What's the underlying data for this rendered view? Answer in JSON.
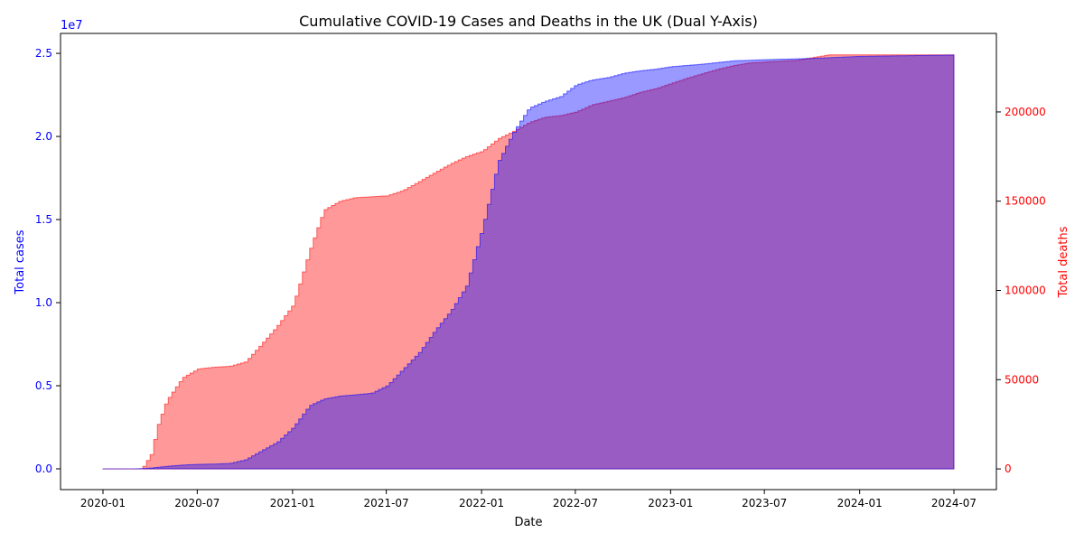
{
  "chart_data": {
    "type": "area",
    "title": "Cumulative COVID-19 Cases and Deaths in the UK (Dual Y-Axis)",
    "xlabel": "Date",
    "x_ticks": [
      "2020-01",
      "2020-07",
      "2021-01",
      "2021-07",
      "2022-01",
      "2022-07",
      "2023-01",
      "2023-07",
      "2024-01",
      "2024-07"
    ],
    "xlim": [
      "2020-01-01",
      "2024-07-01"
    ],
    "left_axis": {
      "label": "Total cases",
      "color": "#0000ff",
      "multiplier_label": "1e7",
      "ticks": [
        "0.0",
        "0.5",
        "1.0",
        "1.5",
        "2.0",
        "2.5"
      ],
      "tick_values": [
        0,
        5000000,
        10000000,
        15000000,
        20000000,
        25000000
      ],
      "ylim": [
        -1250000,
        26200000
      ]
    },
    "right_axis": {
      "label": "Total deaths",
      "color": "#ff0000",
      "ticks": [
        "0",
        "50000",
        "100000",
        "150000",
        "200000"
      ],
      "tick_values": [
        0,
        50000,
        100000,
        150000,
        200000
      ],
      "ylim": [
        -11600,
        244000
      ]
    },
    "series": [
      {
        "name": "Total cases",
        "axis": "left",
        "fill": "#0000ff",
        "points": [
          [
            "2020-01-01",
            0
          ],
          [
            "2020-03-01",
            0
          ],
          [
            "2020-04-01",
            50000
          ],
          [
            "2020-05-01",
            150000
          ],
          [
            "2020-06-01",
            230000
          ],
          [
            "2020-07-01",
            270000
          ],
          [
            "2020-08-01",
            290000
          ],
          [
            "2020-09-01",
            330000
          ],
          [
            "2020-10-01",
            550000
          ],
          [
            "2020-11-01",
            1100000
          ],
          [
            "2020-12-01",
            1600000
          ],
          [
            "2021-01-01",
            2500000
          ],
          [
            "2021-02-01",
            3800000
          ],
          [
            "2021-03-01",
            4200000
          ],
          [
            "2021-04-01",
            4380000
          ],
          [
            "2021-05-01",
            4460000
          ],
          [
            "2021-06-01",
            4550000
          ],
          [
            "2021-07-01",
            5000000
          ],
          [
            "2021-08-01",
            6000000
          ],
          [
            "2021-09-01",
            7000000
          ],
          [
            "2021-10-01",
            8300000
          ],
          [
            "2021-11-01",
            9500000
          ],
          [
            "2021-12-01",
            11000000
          ],
          [
            "2022-01-01",
            14500000
          ],
          [
            "2022-02-01",
            18500000
          ],
          [
            "2022-03-01",
            20200000
          ],
          [
            "2022-04-01",
            21700000
          ],
          [
            "2022-05-01",
            22100000
          ],
          [
            "2022-06-01",
            22400000
          ],
          [
            "2022-07-01",
            23100000
          ],
          [
            "2022-08-01",
            23400000
          ],
          [
            "2022-09-01",
            23550000
          ],
          [
            "2022-10-01",
            23800000
          ],
          [
            "2022-11-01",
            23950000
          ],
          [
            "2022-12-01",
            24050000
          ],
          [
            "2023-01-01",
            24200000
          ],
          [
            "2023-03-01",
            24350000
          ],
          [
            "2023-05-01",
            24550000
          ],
          [
            "2023-07-01",
            24620000
          ],
          [
            "2023-10-01",
            24700000
          ],
          [
            "2024-01-01",
            24820000
          ],
          [
            "2024-07-01",
            24900000
          ]
        ]
      },
      {
        "name": "Total deaths",
        "axis": "right",
        "fill": "#ff0000",
        "points": [
          [
            "2020-01-01",
            0
          ],
          [
            "2020-03-15",
            0
          ],
          [
            "2020-04-01",
            8000
          ],
          [
            "2020-04-15",
            25000
          ],
          [
            "2020-05-01",
            38000
          ],
          [
            "2020-06-01",
            51000
          ],
          [
            "2020-07-01",
            56000
          ],
          [
            "2020-08-01",
            57000
          ],
          [
            "2020-09-01",
            57500
          ],
          [
            "2020-10-01",
            60000
          ],
          [
            "2020-11-01",
            70000
          ],
          [
            "2020-12-01",
            80000
          ],
          [
            "2021-01-01",
            92000
          ],
          [
            "2021-02-01",
            122000
          ],
          [
            "2021-03-01",
            145000
          ],
          [
            "2021-04-01",
            150000
          ],
          [
            "2021-05-01",
            152000
          ],
          [
            "2021-06-01",
            152500
          ],
          [
            "2021-07-01",
            153000
          ],
          [
            "2021-08-01",
            156000
          ],
          [
            "2021-09-01",
            161000
          ],
          [
            "2021-10-01",
            166000
          ],
          [
            "2021-11-01",
            171000
          ],
          [
            "2021-12-01",
            175000
          ],
          [
            "2022-01-01",
            178000
          ],
          [
            "2022-02-01",
            185000
          ],
          [
            "2022-03-01",
            189000
          ],
          [
            "2022-04-01",
            194000
          ],
          [
            "2022-05-01",
            197000
          ],
          [
            "2022-06-01",
            198000
          ],
          [
            "2022-07-01",
            200000
          ],
          [
            "2022-08-01",
            204000
          ],
          [
            "2022-09-01",
            206000
          ],
          [
            "2022-10-01",
            208000
          ],
          [
            "2022-11-01",
            211000
          ],
          [
            "2022-12-01",
            213000
          ],
          [
            "2023-01-01",
            216000
          ],
          [
            "2023-02-01",
            219000
          ],
          [
            "2023-04-01",
            224000
          ],
          [
            "2023-05-01",
            226000
          ],
          [
            "2023-06-01",
            227500
          ],
          [
            "2023-07-01",
            228000
          ],
          [
            "2023-09-01",
            229000
          ],
          [
            "2023-11-01",
            232000
          ],
          [
            "2024-07-01",
            232000
          ]
        ]
      }
    ],
    "grid": false,
    "legend": "none"
  }
}
